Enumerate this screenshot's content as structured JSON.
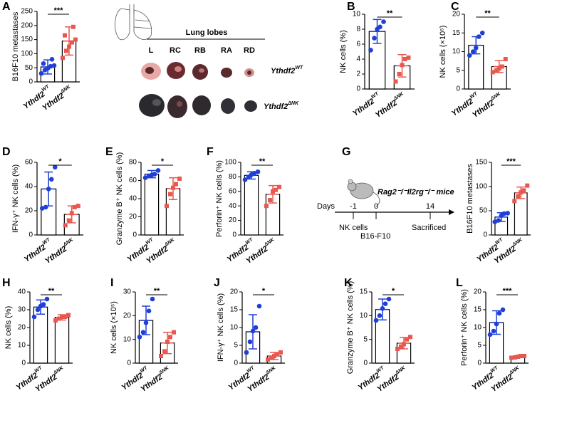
{
  "chart_data": [
    {
      "type": "bar",
      "panel": "A",
      "ylabel": "B16F10 metastases",
      "gene": "Ythdf2",
      "categories": [
        "WT",
        "ΔNK"
      ],
      "values": [
        53,
        145
      ],
      "errors": [
        25,
        50
      ],
      "points": [
        [
          30,
          42,
          48,
          55,
          58,
          65,
          80
        ],
        [
          85,
          110,
          125,
          140,
          150,
          165,
          195
        ]
      ],
      "colors": [
        "#1f3fd6",
        "#e8584f"
      ],
      "ylim": [
        0,
        250
      ],
      "yticks": [
        0,
        50,
        100,
        150,
        200,
        250
      ],
      "significance": "***"
    },
    {
      "type": "bar",
      "panel": "B",
      "ylabel": "NK cells (%)",
      "gene": "Ythdf2",
      "categories": [
        "WT",
        "ΔNK"
      ],
      "values": [
        7.7,
        3.1
      ],
      "errors": [
        1.6,
        1.5
      ],
      "points": [
        [
          5.2,
          6.8,
          8.0,
          8.3,
          9.0
        ],
        [
          1.0,
          2.0,
          3.2,
          4.0,
          4.2
        ]
      ],
      "colors": [
        "#1f3fd6",
        "#e8584f"
      ],
      "ylim": [
        0,
        10
      ],
      "yticks": [
        0,
        2,
        4,
        6,
        8,
        10
      ],
      "significance": "**"
    },
    {
      "type": "bar",
      "panel": "C",
      "ylabel": "NK cells (×10⁵)",
      "gene": "Ythdf2",
      "categories": [
        "WT",
        "ΔNK"
      ],
      "values": [
        11.7,
        6.0
      ],
      "errors": [
        2.3,
        1.6
      ],
      "points": [
        [
          9,
          10,
          11,
          14,
          15
        ],
        [
          4.5,
          5,
          5.5,
          6,
          8
        ]
      ],
      "colors": [
        "#1f3fd6",
        "#e8584f"
      ],
      "ylim": [
        0,
        20
      ],
      "yticks": [
        0,
        5,
        10,
        15,
        20
      ],
      "significance": "**"
    },
    {
      "type": "bar",
      "panel": "D",
      "ylabel": "IFN-γ⁺ NK cells (%)",
      "gene": "Ythdf2",
      "categories": [
        "WT",
        "ΔNK"
      ],
      "values": [
        38,
        17
      ],
      "errors": [
        14,
        7
      ],
      "points": [
        [
          22,
          23,
          38,
          46,
          56
        ],
        [
          8,
          12,
          18,
          23,
          24
        ]
      ],
      "colors": [
        "#1f3fd6",
        "#e8584f"
      ],
      "ylim": [
        0,
        60
      ],
      "yticks": [
        0,
        20,
        40,
        60
      ],
      "significance": "*"
    },
    {
      "type": "bar",
      "panel": "E",
      "ylabel": "Granzyme B⁺ NK cells (%)",
      "gene": "Ythdf2",
      "categories": [
        "WT",
        "ΔNK"
      ],
      "values": [
        67,
        51
      ],
      "errors": [
        4,
        12
      ],
      "points": [
        [
          63,
          65,
          66,
          67,
          71
        ],
        [
          32,
          45,
          52,
          56,
          62
        ]
      ],
      "colors": [
        "#1f3fd6",
        "#e8584f"
      ],
      "ylim": [
        0,
        80
      ],
      "yticks": [
        0,
        20,
        40,
        60,
        80
      ],
      "significance": "*"
    },
    {
      "type": "bar",
      "panel": "F",
      "ylabel": "Perforin⁺ NK cells (%)",
      "gene": "Ythdf2",
      "categories": [
        "WT",
        "ΔNK"
      ],
      "values": [
        82,
        56
      ],
      "errors": [
        5,
        12
      ],
      "points": [
        [
          76,
          80,
          83,
          85,
          87
        ],
        [
          40,
          48,
          60,
          62,
          66
        ]
      ],
      "colors": [
        "#1f3fd6",
        "#e8584f"
      ],
      "ylim": [
        0,
        100
      ],
      "yticks": [
        0,
        20,
        40,
        60,
        80,
        100
      ],
      "significance": "**"
    },
    {
      "type": "bar",
      "panel": "G",
      "ylabel": "B16F10 metastases",
      "gene": "Ythdf2",
      "categories": [
        "WT",
        "ΔNK"
      ],
      "values": [
        37,
        87
      ],
      "errors": [
        9,
        12
      ],
      "points": [
        [
          27,
          30,
          40,
          44,
          45
        ],
        [
          70,
          80,
          88,
          92,
          102
        ]
      ],
      "colors": [
        "#1f3fd6",
        "#e8584f"
      ],
      "ylim": [
        0,
        150
      ],
      "yticks": [
        0,
        50,
        100,
        150
      ],
      "significance": "***"
    },
    {
      "type": "bar",
      "panel": "H",
      "ylabel": "NK cells (%)",
      "gene": "Ythdf2",
      "categories": [
        "WT",
        "ΔNK"
      ],
      "values": [
        31.5,
        25.7
      ],
      "errors": [
        4,
        1.5
      ],
      "points": [
        [
          26,
          30,
          32,
          33,
          36
        ],
        [
          24,
          25,
          26,
          26,
          27
        ]
      ],
      "colors": [
        "#1f3fd6",
        "#e8584f"
      ],
      "ylim": [
        0,
        40
      ],
      "yticks": [
        0,
        10,
        20,
        30,
        40
      ],
      "significance": "**"
    },
    {
      "type": "bar",
      "panel": "I",
      "ylabel": "NK cells (×10⁵)",
      "gene": "Ythdf2",
      "categories": [
        "WT",
        "ΔNK"
      ],
      "values": [
        18,
        8.5
      ],
      "errors": [
        6,
        4.5
      ],
      "points": [
        [
          11,
          13,
          17,
          22,
          27
        ],
        [
          3,
          5,
          9,
          11,
          13
        ]
      ],
      "colors": [
        "#1f3fd6",
        "#e8584f"
      ],
      "ylim": [
        0,
        30
      ],
      "yticks": [
        0,
        10,
        20,
        30
      ],
      "significance": "**"
    },
    {
      "type": "bar",
      "panel": "J",
      "ylabel": "IFN-γ⁺ NK cells (%)",
      "gene": "Ythdf2",
      "categories": [
        "WT",
        "ΔNK"
      ],
      "values": [
        8.8,
        2
      ],
      "errors": [
        4.8,
        1
      ],
      "points": [
        [
          3,
          6,
          9,
          10,
          16
        ],
        [
          1,
          1.5,
          2,
          2.5,
          3
        ]
      ],
      "colors": [
        "#1f3fd6",
        "#e8584f"
      ],
      "ylim": [
        0,
        20
      ],
      "yticks": [
        0,
        5,
        10,
        15,
        20
      ],
      "significance": "*"
    },
    {
      "type": "bar",
      "panel": "K",
      "ylabel": "Granzyme B⁺ NK cells (%)",
      "gene": "Ythdf2",
      "categories": [
        "WT",
        "ΔNK"
      ],
      "values": [
        11.3,
        4.2
      ],
      "errors": [
        2.2,
        1.2
      ],
      "points": [
        [
          9,
          10,
          11.5,
          12.5,
          13.5
        ],
        [
          3,
          3.5,
          4,
          5,
          5.5
        ]
      ],
      "colors": [
        "#1f3fd6",
        "#e8584f"
      ],
      "ylim": [
        0,
        15
      ],
      "yticks": [
        0,
        5,
        10,
        15
      ],
      "significance": "*"
    },
    {
      "type": "bar",
      "panel": "L",
      "ylabel": "Perforin⁺ NK cells (%)",
      "gene": "Ythdf2",
      "categories": [
        "WT",
        "ΔNK"
      ],
      "values": [
        11.4,
        1.8
      ],
      "errors": [
        3.3,
        0.3
      ],
      "points": [
        [
          8,
          9,
          11,
          14,
          15
        ],
        [
          1.5,
          1.6,
          1.8,
          2,
          2
        ]
      ],
      "colors": [
        "#1f3fd6",
        "#e8584f"
      ],
      "ylim": [
        0,
        20
      ],
      "yticks": [
        0,
        5,
        10,
        15,
        20
      ],
      "significance": "***"
    }
  ],
  "lung_panel": {
    "title": "Lung lobes",
    "lobes": [
      "L",
      "RC",
      "RB",
      "RA",
      "RD"
    ],
    "gene": "Ythdf2",
    "rows": [
      "WT",
      "ΔNK"
    ]
  },
  "timeline": {
    "strain": "Rag2⁻/⁻Il2rg⁻/⁻ mice",
    "days_label": "Days",
    "days": [
      -1,
      0,
      14
    ],
    "events": [
      "NK cells",
      "B16-F10",
      "Sacrificed"
    ]
  }
}
